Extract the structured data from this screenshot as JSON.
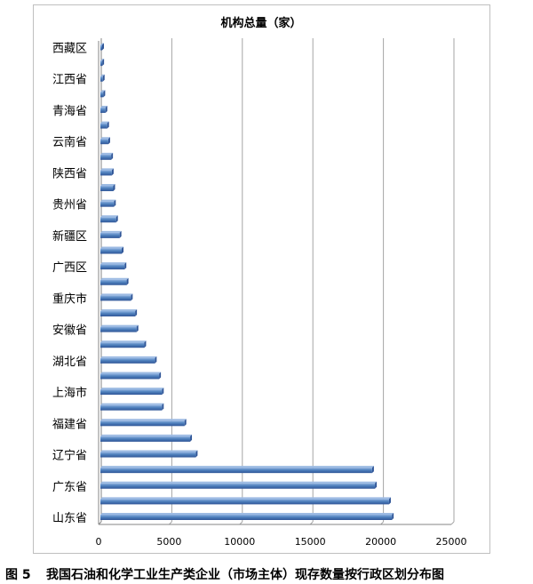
{
  "figure": {
    "number": "图 5",
    "caption": "我国石油和化学工业生产类企业（市场主体）现存数量按行政区划分布图"
  },
  "chart_data": {
    "type": "bar",
    "orientation": "horizontal",
    "title": "机构总量（家）",
    "xlabel": "",
    "ylabel": "",
    "xlim": [
      0,
      25000
    ],
    "x_ticks": [
      0,
      5000,
      10000,
      15000,
      20000,
      25000
    ],
    "grid": true,
    "legend": "none",
    "bar_color": "#4f81bd",
    "categories": [
      "西藏区",
      "",
      "江西省",
      "",
      "青海省",
      "",
      "云南省",
      "",
      "陕西省",
      "",
      "贵州省",
      "",
      "新疆区",
      "",
      "广西区",
      "",
      "重庆市",
      "",
      "安徽省",
      "",
      "湖北省",
      "",
      "上海市",
      "",
      "福建省",
      "",
      "辽宁省",
      "",
      "广东省",
      "",
      "山东省"
    ],
    "values": [
      60,
      70,
      110,
      150,
      300,
      420,
      500,
      700,
      750,
      850,
      900,
      1050,
      1300,
      1450,
      1650,
      1800,
      2100,
      2400,
      2500,
      3050,
      3800,
      4100,
      4300,
      4300,
      5900,
      6300,
      6700,
      19200,
      19400,
      20400,
      20600
    ]
  }
}
